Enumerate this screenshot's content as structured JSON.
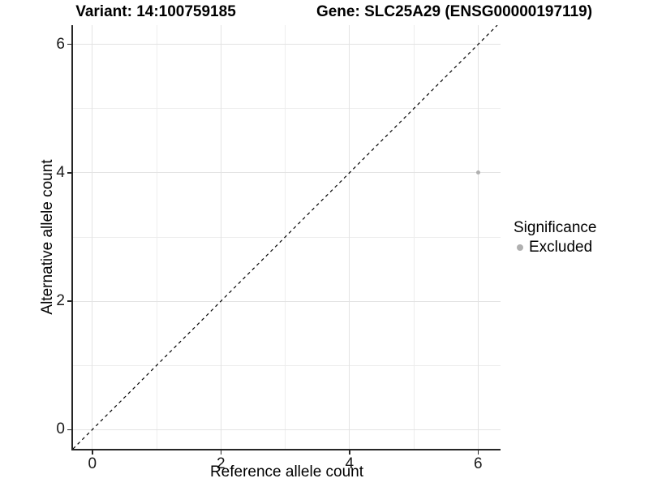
{
  "chart_data": {
    "type": "scatter",
    "title_left": "Variant: 14:100759185",
    "title_right": "Gene: SLC25A29 (ENSG00000197119)",
    "xlabel": "Reference allele count",
    "ylabel": "Alternative allele count",
    "xlim": [
      -0.3,
      6.35
    ],
    "ylim": [
      -0.3,
      6.3
    ],
    "x_ticks": [
      0,
      2,
      4,
      6
    ],
    "y_ticks": [
      0,
      2,
      4,
      6
    ],
    "x_minor_gridlines": [
      1,
      3,
      5
    ],
    "y_minor_gridlines": [
      1,
      3,
      5
    ],
    "grid": true,
    "legend_position": "right",
    "points": [
      {
        "x": 6,
        "y": 4,
        "significance": "Excluded"
      }
    ],
    "identity_line": {
      "equation": "y = x",
      "style": "dashed"
    }
  },
  "legend": {
    "title": "Significance",
    "items": [
      {
        "label": "Excluded",
        "color": "#b0b0b0"
      }
    ]
  },
  "colors": {
    "point": "#b0b0b0",
    "grid_major": "#e3e3e3",
    "grid_minor": "#ededed",
    "axis_line": "#262626",
    "identity_line": "#000000"
  }
}
